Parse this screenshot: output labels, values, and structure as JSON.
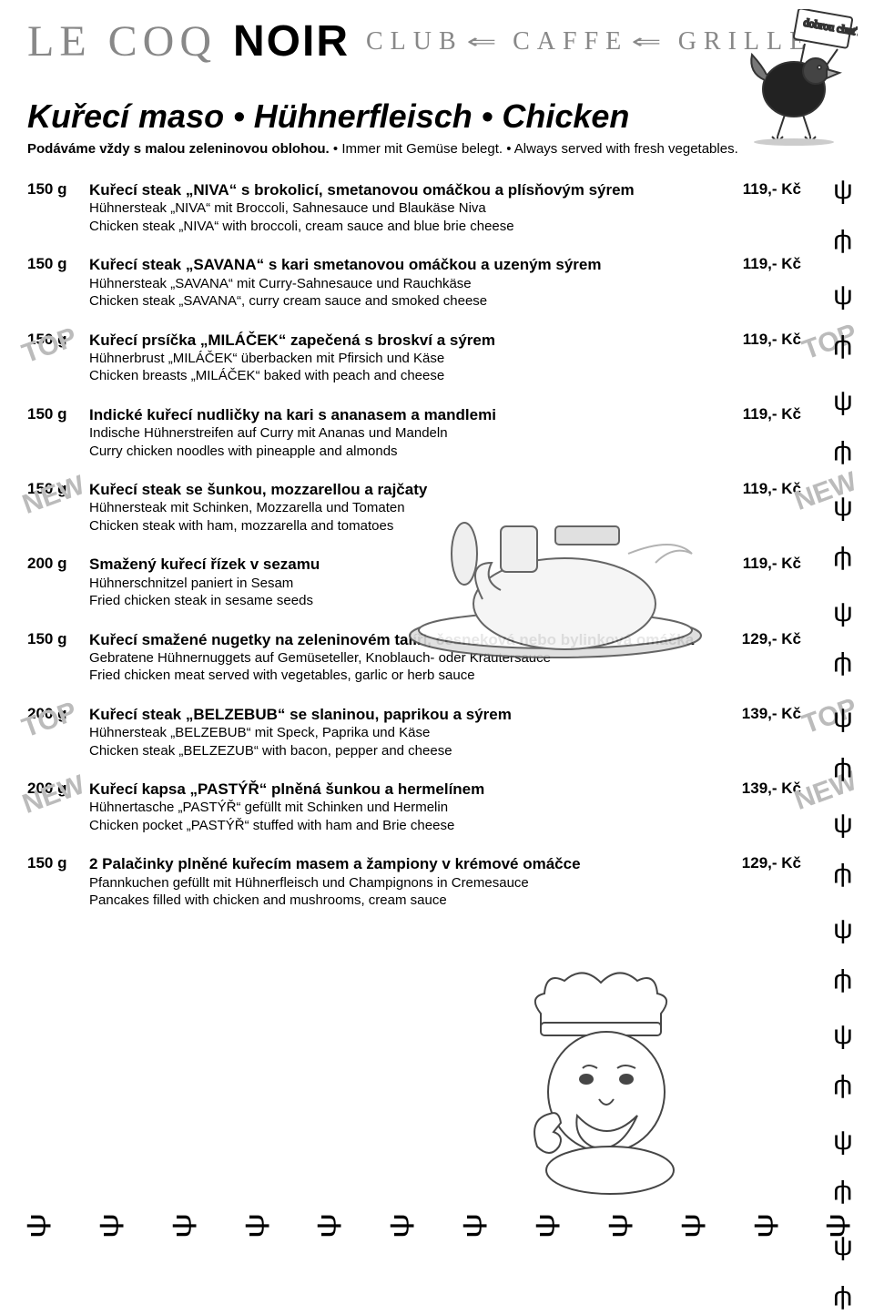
{
  "header": {
    "brand1": "LE COQ",
    "brand2": "NOIR",
    "word_club": "CLUB",
    "word_caffe": "CAFFE",
    "word_grille": "GRILLE",
    "sign_text": "dobrou chuť!"
  },
  "section": {
    "title": "Kuřecí maso • Hühnerfleisch • Chicken",
    "sub_bold": "Podáváme vždy s malou zeleninovou oblohou.",
    "sub_rest": " • Immer mit Gemüse belegt. • Always served with fresh vegetables."
  },
  "currency": "Kč",
  "items": [
    {
      "weight": "150 g",
      "cz": "Kuřecí steak „NIVA“ s brokolicí, smetanovou omáčkou a plísňovým sýrem",
      "de": "Hühnersteak „NIVA“ mit Broccoli, Sahnesauce und Blaukäse Niva",
      "en": "Chicken steak „NIVA“ with broccoli, cream sauce and blue brie cheese",
      "price": "119,-",
      "badge": ""
    },
    {
      "weight": "150 g",
      "cz": "Kuřecí steak „SAVANA“ s kari smetanovou omáčkou a uzeným sýrem",
      "de": "Hühnersteak „SAVANA“ mit Curry-Sahnesauce und Rauchkäse",
      "en": "Chicken steak „SAVANA“, curry cream sauce and smoked cheese",
      "price": "119,-",
      "badge": ""
    },
    {
      "weight": "150 g",
      "cz": "Kuřecí prsíčka „MILÁČEK“ zapečená s broskví a sýrem",
      "de": "Hühnerbrust „MILÁČEK“ überbacken mit Pfirsich und Käse",
      "en": "Chicken breasts „MILÁČEK“ baked with peach and cheese",
      "price": "119,-",
      "badge": "TOP"
    },
    {
      "weight": "150 g",
      "cz": "Indické kuřecí nudličky na kari s ananasem a mandlemi",
      "de": "Indische Hühnerstreifen auf Curry mit Ananas und Mandeln",
      "en": "Curry chicken noodles with pineapple and almonds",
      "price": "119,-",
      "badge": ""
    },
    {
      "weight": "150 g",
      "cz": "Kuřecí steak se šunkou, mozzarellou a rajčaty",
      "de": "Hühnersteak mit Schinken, Mozzarella und Tomaten",
      "en": "Chicken steak with ham, mozzarella and tomatoes",
      "price": "119,-",
      "badge": "NEW"
    },
    {
      "weight": "200 g",
      "cz": "Smažený kuřecí řízek v sezamu",
      "de": "Hühnerschnitzel paniert in Sesam",
      "en": "Fried chicken steak in sesame seeds",
      "price": "119,-",
      "badge": ""
    },
    {
      "weight": "150 g",
      "cz": "Kuřecí smažené nugetky na zeleninovém talíři, česneková nebo bylinková omáčka",
      "de": "Gebratene Hühnernuggets auf Gemüseteller, Knoblauch- oder Kräutersauce",
      "en": "Fried chicken meat served with vegetables, garlic or herb sauce",
      "price": "129,-",
      "badge": ""
    },
    {
      "weight": "200 g",
      "cz": "Kuřecí steak „BELZEBUB“ se slaninou, paprikou a sýrem",
      "de": "Hühnersteak „BELZEBUB“ mit Speck, Paprika und Käse",
      "en": "Chicken steak „BELZEZUB“ with bacon, pepper and cheese",
      "price": "139,-",
      "badge": "TOP"
    },
    {
      "weight": "200 g",
      "cz": "Kuřecí kapsa „PASTÝŘ“ plněná šunkou a hermelínem",
      "de": "Hühnertasche „PASTÝŘ“ gefüllt mit Schinken und Hermelin",
      "en": "Chicken pocket „PASTÝŘ“ stuffed with ham and Brie cheese",
      "price": "139,-",
      "badge": "NEW"
    },
    {
      "weight": "150 g",
      "cz": "2 Palačinky plněné kuřecím masem a žampiony v krémové omáčce",
      "de": "Pfannkuchen gefüllt mit Hühnerfleisch und Champignons in Cremesauce",
      "en": "Pancakes filled with chicken and mushrooms, cream sauce",
      "price": "129,-",
      "badge": ""
    }
  ],
  "side_glyph_count": 22,
  "bottom_glyph_count": 12,
  "colors": {
    "text": "#000000",
    "faded": "#888888",
    "badge": "#bbbbbb",
    "bg": "#ffffff"
  }
}
